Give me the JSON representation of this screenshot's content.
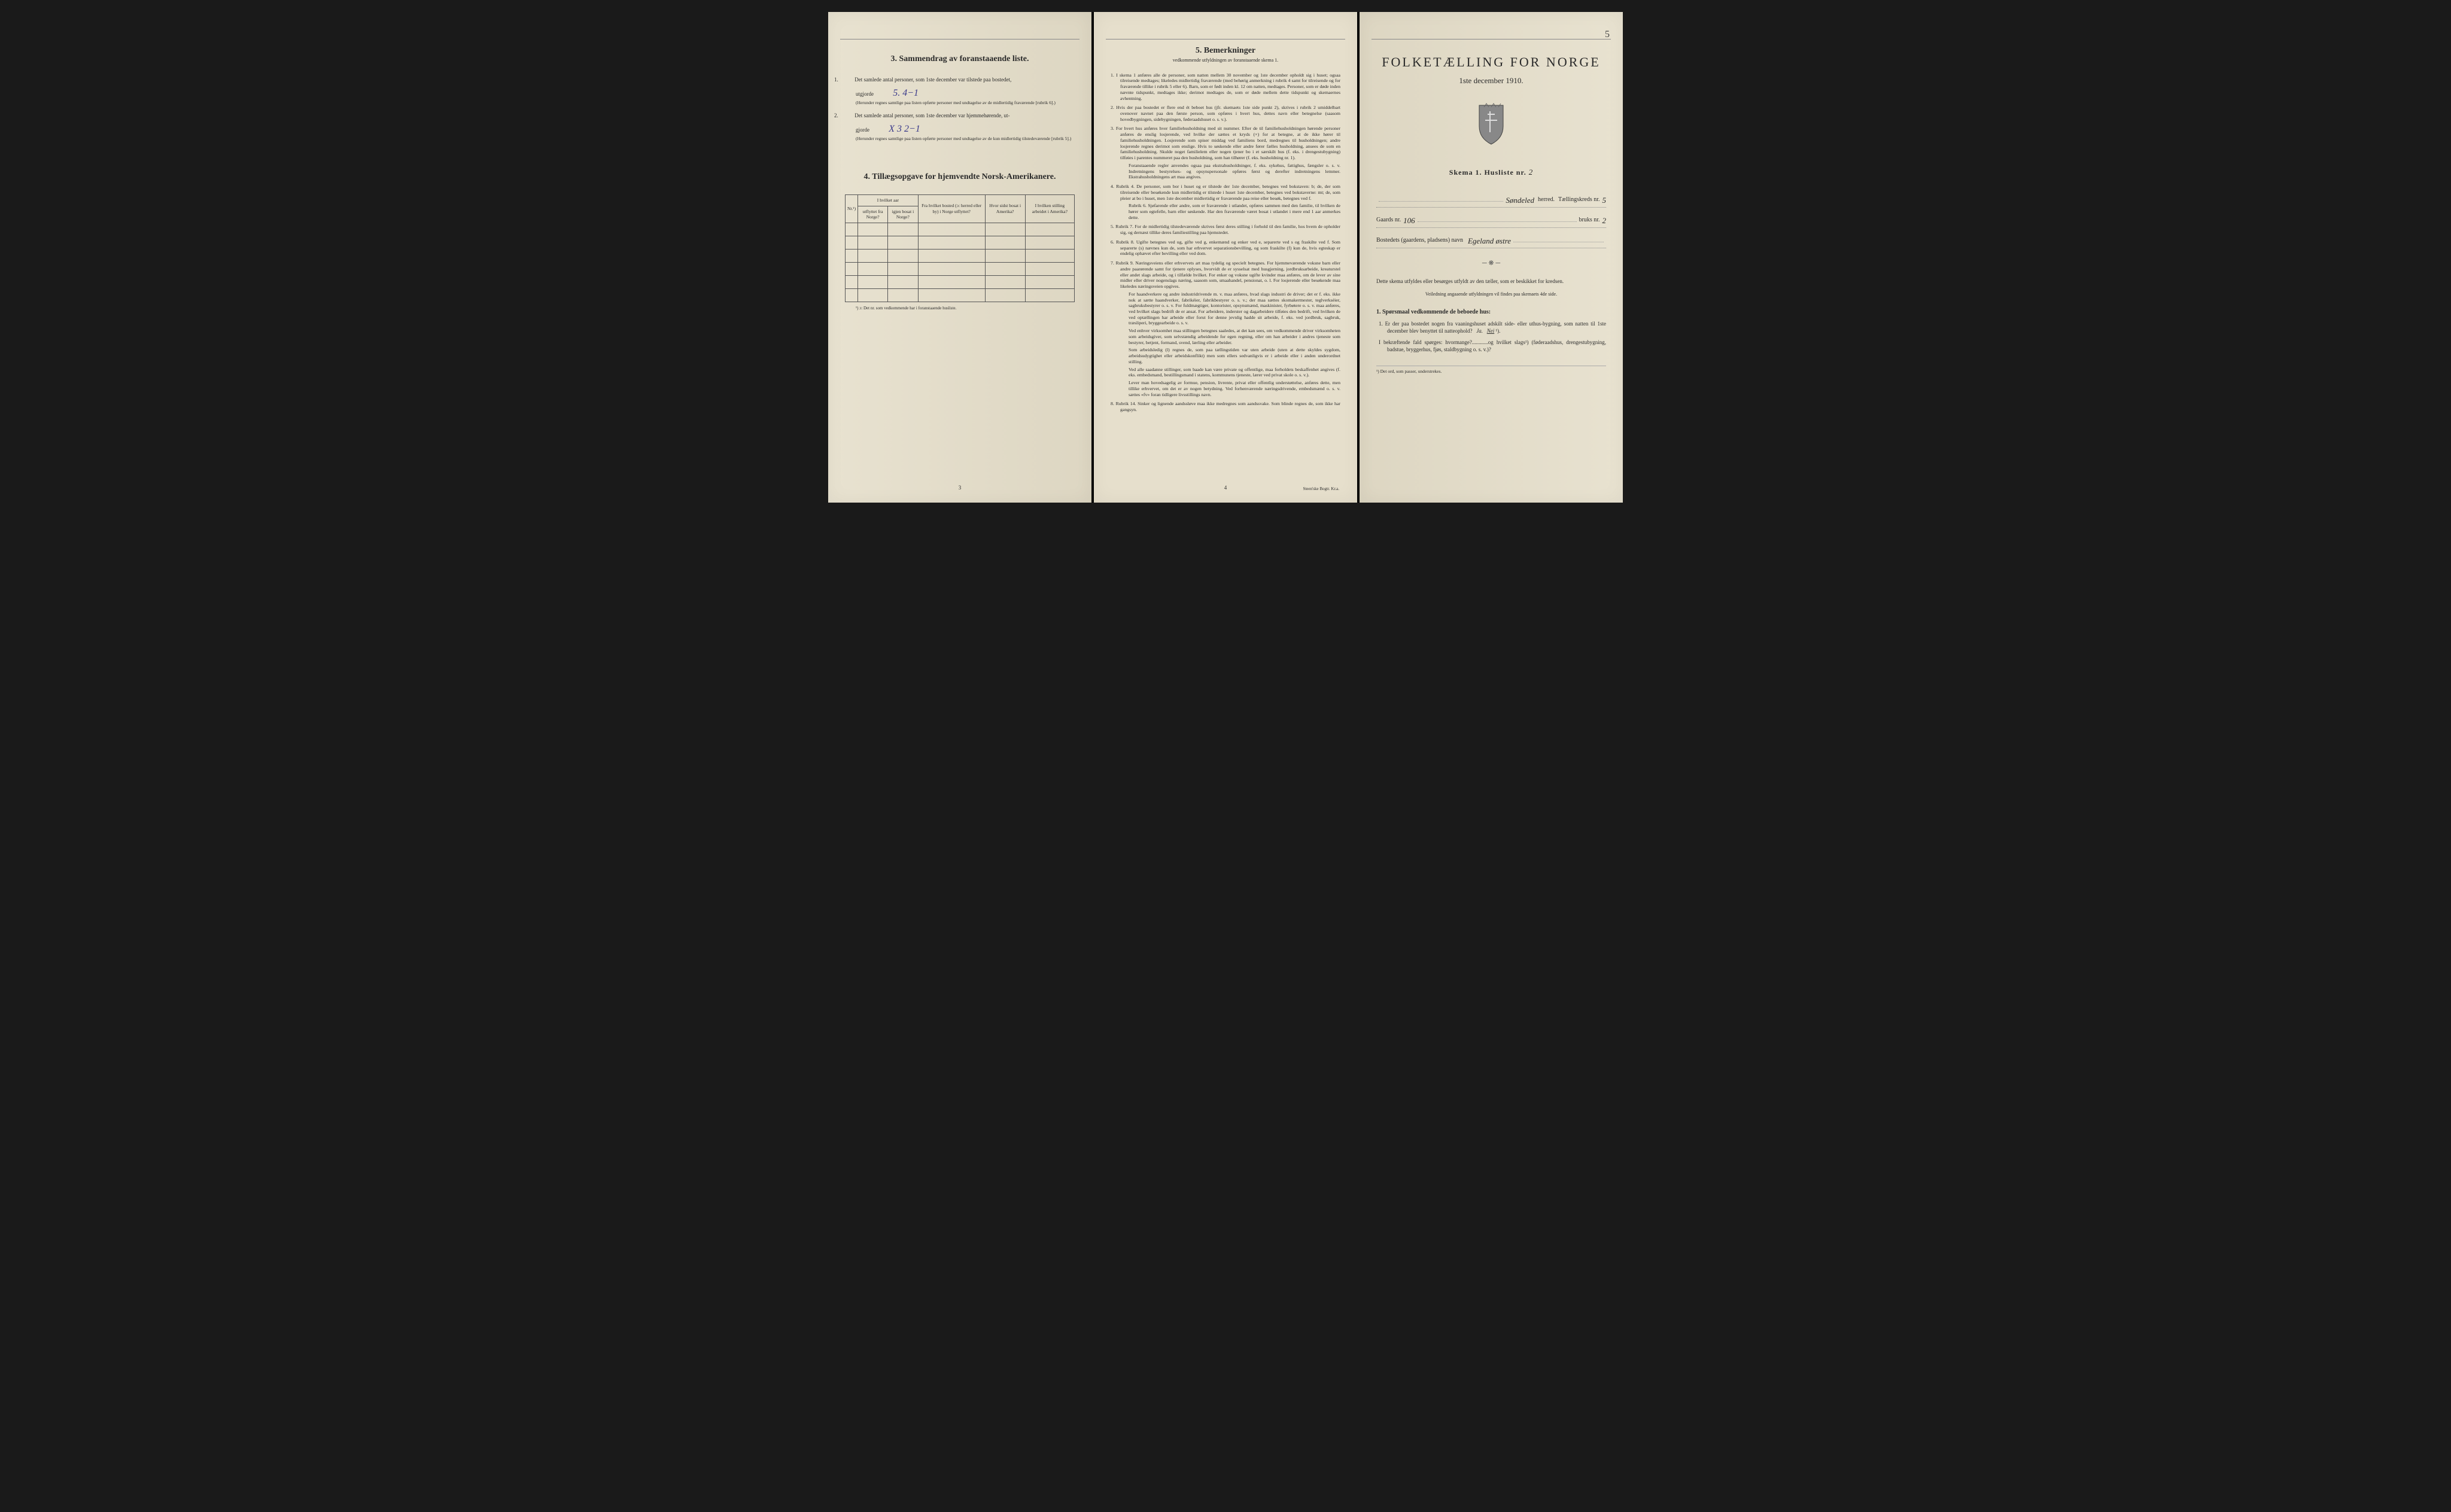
{
  "colors": {
    "paper": "#e8e2d0",
    "paper_shadow": "#ddd6c2",
    "ink": "#2a2a2a",
    "handwriting": "#3a3a8a",
    "border": "#555"
  },
  "page1": {
    "section3_title": "3.   Sammendrag av foranstaaende liste.",
    "item1_text": "Det samlede antal personer, som 1ste december var tilstede paa bostedet,",
    "item1_prefix": "utgjorde",
    "item1_handwritten": "5.    4−1",
    "item1_fine": "(Herunder regnes samtlige paa listen opførte personer med undtagelse av de midlertidig fraværende [rubrik 6].)",
    "item2_text": "Det samlede antal personer, som 1ste december var hjemmehørende, ut-",
    "item2_prefix": "gjorde",
    "item2_handwritten": "X 3   2−1",
    "item2_fine": "(Herunder regnes samtlige paa listen opførte personer med undtagelse av de kun midlertidig tilstedeværende [rubrik 5].)",
    "section4_title": "4.   Tillægsopgave for hjemvendte Norsk-Amerikanere.",
    "table": {
      "headers": {
        "col1": "Nr.¹)",
        "col2_top": "I hvilket aar",
        "col2a": "utflyttet fra Norge?",
        "col2b": "igjen bosat i Norge?",
        "col3": "Fra hvilket bosted (ɔ: herred eller by) i Norge utflyttet?",
        "col4": "Hvor sidst bosat i Amerika?",
        "col5": "I hvilken stilling arbeidet i Amerika?"
      },
      "empty_rows": 6
    },
    "table_footnote": "¹) ɔ: Det nr. som vedkommende har i foranstaaende husliste.",
    "page_num": "3"
  },
  "page2": {
    "section5_title": "5.   Bemerkninger",
    "section5_sub": "vedkommende utfyldningen av foranstaaende skema 1.",
    "remarks": [
      {
        "n": "1.",
        "text": "I skema 1 anføres alle de personer, som natten mellem 30 november og 1ste december opholdt sig i huset; ogsaa tilreisende medtages; likeledes midlertidig fraværende (med behørig anmerkning i rubrik 4 samt for tilreisende og for fraværende tillike i rubrik 5 eller 6). Barn, som er født inden kl. 12 om natten, medtages. Personer, som er døde inden nævnte tidspunkt, medtages ikke; derimot medtages de, som er døde mellem dette tidspunkt og skemaernes avhentning."
      },
      {
        "n": "2.",
        "text": "Hvis der paa bostedet er flere end ét beboet hus (jfr. skemaets 1ste side punkt 2), skrives i rubrik 2 umiddelbart ovenover navnet paa den første person, som opføres i hvert hus, dettes navn eller betegnelse (saasom hovedbygningen, sidebygningen, føderaadshuset o. s. v.)."
      },
      {
        "n": "3.",
        "text": "For hvert hus anføres hver familiehusholdning med sit nummer. Efter de til familiehusholdningen hørende personer anføres de enslig losjerende, ved hvilke der sættes et kryds (×) for at betegne, at de ikke hører til familiehusholdningen. Losjerende som spiser middag ved familiens bord, medregnes til husholdningen; andre losjerende regnes derimot som enslige. Hvis to søskende eller andre fører fælles husholdning, ansees de som en familiehusholdning. Skulde noget familielem eller nogen tjener bo i et særskilt hus (f. eks. i drengestu­bygning) tilføies i parentes nummeret paa den husholdning, som han tilhører (f. eks. husholdning nr. 1).",
        "extra": "Foranstaaende regler anvendes ogsaa paa ekstrahusholdninger, f. eks. sykehus, fattighus, fængsler o. s. v. Indretningens bestyrelses- og opsynspersonale opføres først og derefter indretningens lemmer. Ekstrahusholdningens art maa angives."
      },
      {
        "n": "4.",
        "text": "Rubrik 4. De personer, som bor i huset og er tilstede der 1ste december, betegnes ved bokstaven: b; de, der som tilreisende eller besøkende kun midlertidig er tilstede i huset 1ste december, betegnes ved bokstaverne: mt; de, som pleier at bo i huset, men 1ste december midlertidig er fraværende paa reise eller besøk, betegnes ved f.",
        "extra": "Rubrik 6. Sjøfarende eller andre, som er fraværende i utlandet, opføres sammen med den familie, til hvilken de hører som egtefelle, barn eller søskende. Har den fraværende været bosat i utlandet i mere end 1 aar anmerkes dette."
      },
      {
        "n": "5.",
        "text": "Rubrik 7. For de midlertidig tilstedeværende skrives først deres stilling i forhold til den familie, hos hvem de opholder sig, og dernæst tillike deres familiestilling paa hjemstedet."
      },
      {
        "n": "6.",
        "text": "Rubrik 8. Ugifte betegnes ved ug, gifte ved g, enkemænd og enker ved e, separerte ved s og fraskilte ved f. Som separerte (s) nævnes kun de, som har erhvervet separationsbevilling, og som fraskilte (f) kun de, hvis egteskap er endelig ophævet efter bevilling eller ved dom."
      },
      {
        "n": "7.",
        "text": "Rubrik 9. Næringsveiens eller erhvervets art maa tydelig og specielt betegnes. For hjemmeværende voksne barn eller andre paarørende samt for tjenere oplyses, hvorvidt de er sysselsat med husgjerning, jordbruksarbeide, kreaturstel eller andet slags arbeide, og i tilfælde hvilket. For enker og voksne ugifte kvinder maa anføres, om de lever av sine midler eller driver nogenslags næring, saasom som, smaahandel, pensionat, o. l. For losjerende eller besøkende maa likeledes næringsveien opgives.",
        "extra2": "For haandverkere og andre industridrivende m. v. maa anføres, hvad slags industri de driver; det er f. eks. ikke nok at sætte haandverker, fabrikéier, fabrikbestyrer o. s. v.; der maa sættes skomakermester, teglverkséier, sagbruksbestyrer o. s. v. For fuldmægtiger, kontorister, opsynsmænd, maskinister, fyrbøtere o. s. v. maa anføres, ved hvilket slags bedrift de er ansat. For arbeidere, inderster og dagarbeidere tilføies den bedrift, ved hvilken de ved optællingen har arbeide eller forut for denne jevnlig hadde sit arbeide, f. eks. ved jordbruk, sagbruk, træsliperi, bryggearbeide o. s. v.",
        "extra3": "Ved enhver virksomhet maa stillingen betegnes saaledes, at det kan sees, om vedkommende driver virksomheten som arbeidsgiver, som selvstændig arbeidende for egen regning, eller om han arbeider i andres tjeneste som bestyrer, betjent, formand, svend, lærling eller arbeider.",
        "extra4": "Som arbeidsledig (l) regnes de, som paa tællingstiden var uten arbeide (uten at dette skyldes sygdom, arbeidsudygtighet eller arbeidskonflikt) men som ellers sedvanligvis er i arbeide eller i anden underordnet stilling.",
        "extra5": "Ved alle saadanne stillinger, som baade kan være private og offentlige, maa forholdets beskaffenhet angives (f. eks. embedsmand, bestillingsmand i statens, kommunens tjeneste, lærer ved privat skole o. s. v.).",
        "extra6": "Lever man hovedsagelig av formue, pension, livrente, privat eller offentlig understøttelse, anføres dette, men tillike erhvervet, om det er av nogen betydning. Ved forhenværende næringsdrivende, embedsmænd o. s. v. sættes «fv» foran tidligere livsstillings navn."
      },
      {
        "n": "8.",
        "text": "Rubrik 14. Sinker og lignende aandssløve maa ikke medregnes som aandssvake. Som blinde regnes de, som ikke har gangsyn."
      }
    ],
    "page_num": "4",
    "printer": "Steen'ske Bogtr. Kr.a."
  },
  "page3": {
    "corner_mark": "5",
    "main_title": "FOLKETÆLLING FOR NORGE",
    "subtitle": "1ste december 1910.",
    "skema_label": "Skema 1.   Husliste nr.",
    "skema_nr": "2",
    "herred_value": "Søndeled",
    "herred_label": "herred.",
    "kreds_label": "Tællingskreds nr.",
    "kreds_value": "5",
    "gaards_label": "Gaards nr.",
    "gaards_value": "106",
    "bruks_label": "bruks nr.",
    "bruks_value": "2",
    "bosted_label": "Bostedets (gaardens, pladsens) navn",
    "bosted_value": "Egeland østre",
    "instruction1": "Dette skema utfyldes eller besørges utfyldt av den tæller, som er beskikket for kredsen.",
    "instruction2": "Veiledning angaaende utfyldningen vil findes paa skemaets 4de side.",
    "q_head": "1. Spørsmaal vedkommende de beboede hus:",
    "q1": "Er der paa bostedet nogen fra vaaningshuset adskilt side- eller uthus-bygning, som natten til 1ste december blev benyttet til natteophold?   Ja.   Nei ¹).",
    "q2": "I bekræftende fald spørges: hvormange?............og hvilket slags¹) (føderaadshus, drengestubygning, badstue, bryggerhus, fjøs, staldbygning o. s. v.)?",
    "footnote": "¹) Det ord, som passer, understrekes."
  }
}
